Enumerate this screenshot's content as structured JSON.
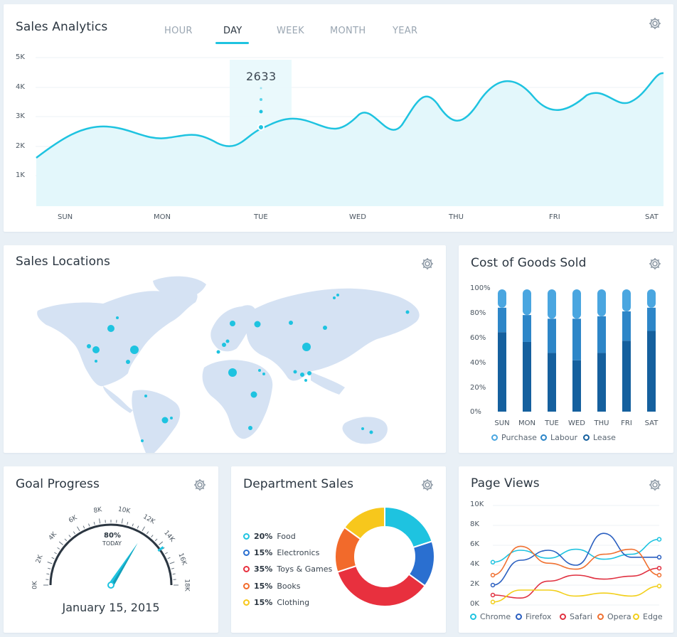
{
  "sales_analytics": {
    "title": "Sales Analytics",
    "tabs": [
      "HOUR",
      "DAY",
      "WEEK",
      "MONTH",
      "YEAR"
    ],
    "active_tab": "DAY",
    "tooltip_value": "2633",
    "y_ticks": [
      "5K",
      "4K",
      "3K",
      "2K",
      "1K"
    ],
    "x_labels": [
      "SUN",
      "MON",
      "TUE",
      "WED",
      "THU",
      "FRI",
      "SAT"
    ],
    "line_color": "#1ec3e0"
  },
  "sales_locations": {
    "title": "Sales Locations",
    "map_color": "#d5e2f3",
    "marker_color": "#1ec3e0"
  },
  "cost_of_goods": {
    "title": "Cost of Goods Sold",
    "y_ticks": [
      "100%",
      "80%",
      "60%",
      "40%",
      "20%",
      "0%"
    ],
    "legend": [
      {
        "label": "Purchase",
        "color": "#4aa6e0"
      },
      {
        "label": "Labour",
        "color": "#2d86c8"
      },
      {
        "label": "Lease",
        "color": "#15609e"
      }
    ]
  },
  "goal_progress": {
    "title": "Goal Progress",
    "gauge_ticks": [
      "0K",
      "2K",
      "4K",
      "6K",
      "8K",
      "10K",
      "12K",
      "14K",
      "16K",
      "18K"
    ],
    "percent": "80%",
    "percent_caption": "TODAY",
    "date": "January 15, 2015",
    "needle_color": "#1ec3e0"
  },
  "department_sales": {
    "title": "Department Sales",
    "items": [
      {
        "pct": "20%",
        "label": "Food",
        "color": "#1ec3e0"
      },
      {
        "pct": "15%",
        "label": "Electronics",
        "color": "#2a6fd0"
      },
      {
        "pct": "35%",
        "label": "Toys & Games",
        "color": "#e8303e"
      },
      {
        "pct": "15%",
        "label": "Books",
        "color": "#f26a2b"
      },
      {
        "pct": "15%",
        "label": "Clothing",
        "color": "#f7c71c"
      }
    ]
  },
  "page_views": {
    "title": "Page Views",
    "y_ticks": [
      "10K",
      "8K",
      "6K",
      "4K",
      "2K",
      "0K"
    ],
    "legend": [
      {
        "label": "Chrome",
        "color": "#1ec3e0"
      },
      {
        "label": "Firefox",
        "color": "#2a5fc0"
      },
      {
        "label": "Safari",
        "color": "#e03040"
      },
      {
        "label": "Opera",
        "color": "#f07030"
      },
      {
        "label": "Edge",
        "color": "#f2cf1a"
      }
    ]
  },
  "chart_data": [
    {
      "type": "area",
      "title": "Sales Analytics",
      "categories": [
        "SUN",
        "MON",
        "TUE",
        "WED",
        "THU",
        "FRI",
        "SAT"
      ],
      "ylim": [
        0,
        5000
      ],
      "annotation": {
        "x": "TUE",
        "value": 2633
      },
      "series": [
        {
          "values": [
            2700,
            2300,
            2633,
            2700,
            2800,
            3300,
            4300
          ]
        }
      ]
    },
    {
      "type": "bar",
      "title": "Cost of Goods Sold",
      "categories": [
        "SUN",
        "MON",
        "TUE",
        "WED",
        "THU",
        "FRI",
        "SAT"
      ],
      "ylim": [
        0,
        100
      ],
      "stacked": true,
      "series": [
        {
          "name": "Lease",
          "values": [
            65,
            57,
            48,
            42,
            48,
            58,
            66
          ]
        },
        {
          "name": "Labour",
          "values": [
            20,
            22,
            28,
            34,
            30,
            24,
            19
          ]
        },
        {
          "name": "Purchase",
          "values": [
            15,
            21,
            24,
            24,
            22,
            18,
            15
          ]
        }
      ]
    },
    {
      "type": "pie",
      "title": "Department Sales",
      "categories": [
        "Food",
        "Electronics",
        "Toys & Games",
        "Books",
        "Clothing"
      ],
      "values": [
        20,
        15,
        35,
        15,
        15
      ]
    },
    {
      "type": "line",
      "title": "Page Views",
      "ylim": [
        0,
        10000
      ],
      "series": [
        {
          "name": "Chrome",
          "values": [
            4300,
            5500,
            4700,
            5600,
            4600,
            5100,
            6600
          ]
        },
        {
          "name": "Firefox",
          "values": [
            2000,
            4500,
            5500,
            4000,
            7200,
            4800,
            4800
          ]
        },
        {
          "name": "Safari",
          "values": [
            1000,
            700,
            2400,
            3000,
            2600,
            2900,
            3700
          ]
        },
        {
          "name": "Opera",
          "values": [
            3000,
            5900,
            4200,
            3600,
            5100,
            5600,
            3000
          ]
        },
        {
          "name": "Edge",
          "values": [
            300,
            1500,
            1500,
            900,
            1200,
            900,
            1900
          ]
        }
      ]
    }
  ]
}
